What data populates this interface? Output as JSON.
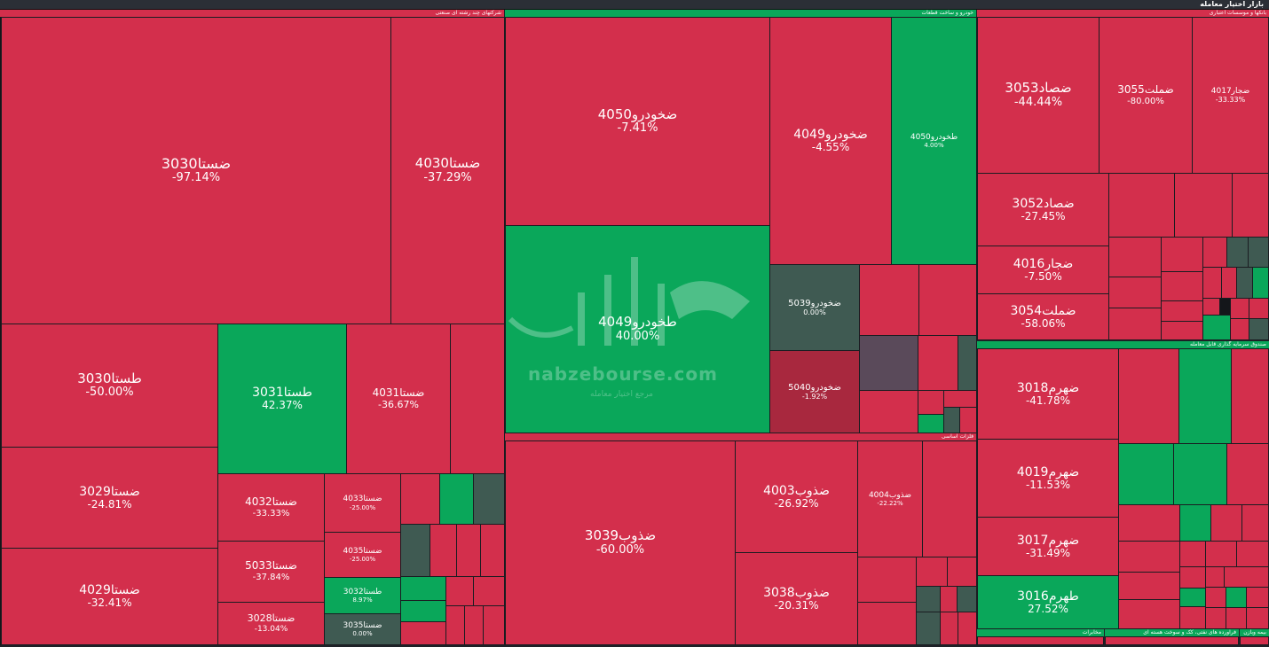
{
  "header": {
    "title": "بازار اختیار معامله"
  },
  "sectors": {
    "s1": "شرکتهای چند رشته ای صنعتی",
    "s2": "خودرو و ساخت قطعات",
    "s3": "بانکها و موسسات اعتباری",
    "s4": "فلزات اساسی",
    "s5": "صندوق سرمایه گذاری قابل معامله",
    "s6": "مخابرات",
    "s7": "فراورده های نفتی، کک و سوخت هسته ای",
    "s8": "بیمه وبازن"
  },
  "tiles": {
    "t1": {
      "sym": "ضستا3030",
      "pct": "-97.14%"
    },
    "t2": {
      "sym": "ضستا4030",
      "pct": "-37.29%"
    },
    "t3": {
      "sym": "طستا3030",
      "pct": "-50.00%"
    },
    "t4": {
      "sym": "طستا3031",
      "pct": "42.37%"
    },
    "t5": {
      "sym": "ضستا4031",
      "pct": "-36.67%"
    },
    "t6": {
      "sym": "ضستا3029",
      "pct": "-24.81%"
    },
    "t7": {
      "sym": "ضستا4029",
      "pct": "-32.41%"
    },
    "t8": {
      "sym": "ضستا4032",
      "pct": "-33.33%"
    },
    "t9": {
      "sym": "ضستا5033",
      "pct": "-37.84%"
    },
    "t10": {
      "sym": "ضستا3028",
      "pct": "-13.04%"
    },
    "t11": {
      "sym": "ضستا4033",
      "pct": "-25.00%"
    },
    "t12": {
      "sym": "ضستا4035",
      "pct": "-25.00%"
    },
    "t13": {
      "sym": "طستا3032",
      "pct": "8.97%"
    },
    "t14": {
      "sym": "ضستا3035",
      "pct": "0.00%"
    },
    "t15": {
      "sym": "ضخودرو4050",
      "pct": "-7.41%"
    },
    "t16": {
      "sym": "ضخودرو4049",
      "pct": "-4.55%"
    },
    "t17": {
      "sym": "طخودرو4050",
      "pct": "4.00%"
    },
    "t18": {
      "sym": "طخودرو4049",
      "pct": "40.00%"
    },
    "t19": {
      "sym": "ضخودرو5039",
      "pct": "0.00%"
    },
    "t20": {
      "sym": "ضخودرو5040",
      "pct": "-1.92%"
    },
    "t21": {
      "sym": "ضذوب3039",
      "pct": "-60.00%"
    },
    "t22": {
      "sym": "ضذوب4003",
      "pct": "-26.92%"
    },
    "t23": {
      "sym": "ضذوب3038",
      "pct": "-20.31%"
    },
    "t24": {
      "sym": "ضذوب4004",
      "pct": "-22.22%"
    },
    "t25": {
      "sym": "ضصاد3053",
      "pct": "-44.44%"
    },
    "t26": {
      "sym": "ضملت3055",
      "pct": "-80.00%"
    },
    "t27": {
      "sym": "ضجار4017",
      "pct": "-33.33%"
    },
    "t28": {
      "sym": "ضصاد3052",
      "pct": "-27.45%"
    },
    "t29": {
      "sym": "ضجار4016",
      "pct": "-7.50%"
    },
    "t30": {
      "sym": "ضملت3054",
      "pct": "-58.06%"
    },
    "t31": {
      "sym": "ضهرم3018",
      "pct": "-41.78%"
    },
    "t32": {
      "sym": "ضهرم4019",
      "pct": "-11.53%"
    },
    "t33": {
      "sym": "ضهرم3017",
      "pct": "-31.49%"
    },
    "t34": {
      "sym": "طهرم3016",
      "pct": "27.52%"
    }
  },
  "watermark": {
    "site": "nabzebourse.com",
    "tagline": "مرجع اختیار معامله"
  },
  "colors": {
    "loss": "#d32f4c",
    "gain": "#0aa75a",
    "neutral": "#3f5a52",
    "sector_header": "#0aa75a"
  }
}
